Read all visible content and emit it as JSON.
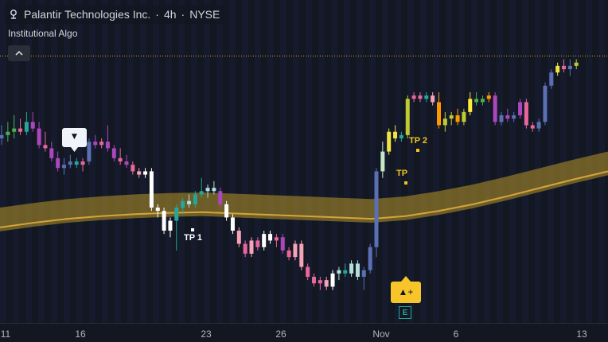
{
  "header": {
    "symbol": "Palantir Technologies Inc.",
    "separator": "·",
    "interval": "4h",
    "exchange": "NYSE",
    "indicator_name": "Institutional Algo"
  },
  "x_axis_labels": [
    "11",
    "16",
    "23",
    "26",
    "Nov",
    "6",
    "13"
  ],
  "annotations": {
    "tp1": "TP 1",
    "tp_partial": "TP",
    "tp2": "TP 2",
    "buy_signal": "▲+",
    "sell_signal": "▼",
    "earnings": "E"
  },
  "colors": {
    "background": "#131722",
    "stripe_dark": "#161c2e",
    "ma_band": "#b8952a",
    "ma_line": "#d4a53a",
    "dotted_line": "#c9a227",
    "buy_badge": "#f7c52a",
    "earnings": "#26a69a"
  },
  "chart_data": {
    "type": "candlestick",
    "symbol": "PLTR",
    "interval": "4h",
    "x": [
      "11",
      "16",
      "23",
      "26",
      "Nov",
      "6",
      "13"
    ],
    "candles": [
      {
        "o": 15.4,
        "h": 15.6,
        "l": 15.3,
        "c": 15.45,
        "color": "#5b6fb5"
      },
      {
        "o": 15.45,
        "h": 15.65,
        "l": 15.35,
        "c": 15.5,
        "color": "#4caf50"
      },
      {
        "o": 15.5,
        "h": 15.75,
        "l": 15.4,
        "c": 15.55,
        "color": "#4caf50"
      },
      {
        "o": 15.55,
        "h": 15.7,
        "l": 15.45,
        "c": 15.5,
        "color": "#e8669c"
      },
      {
        "o": 15.5,
        "h": 15.8,
        "l": 15.45,
        "c": 15.65,
        "color": "#26a69a"
      },
      {
        "o": 15.65,
        "h": 15.8,
        "l": 15.5,
        "c": 15.55,
        "color": "#ab47bc"
      },
      {
        "o": 15.55,
        "h": 15.65,
        "l": 15.25,
        "c": 15.3,
        "color": "#ab47bc"
      },
      {
        "o": 15.3,
        "h": 15.5,
        "l": 15.2,
        "c": 15.25,
        "color": "#e8669c"
      },
      {
        "o": 15.25,
        "h": 15.35,
        "l": 15.05,
        "c": 15.1,
        "color": "#ab47bc"
      },
      {
        "o": 15.1,
        "h": 15.2,
        "l": 14.9,
        "c": 14.95,
        "color": "#ab47bc"
      },
      {
        "o": 14.95,
        "h": 15.1,
        "l": 14.85,
        "c": 15.0,
        "color": "#5b6fb5"
      },
      {
        "o": 15.0,
        "h": 15.15,
        "l": 14.95,
        "c": 15.05,
        "color": "#5b6fb5"
      },
      {
        "o": 15.05,
        "h": 15.1,
        "l": 14.95,
        "c": 15.0,
        "color": "#26a69a"
      },
      {
        "o": 15.0,
        "h": 15.1,
        "l": 14.9,
        "c": 15.05,
        "color": "#e8669c"
      },
      {
        "o": 15.05,
        "h": 15.4,
        "l": 15.0,
        "c": 15.35,
        "color": "#5b6fb5"
      },
      {
        "o": 15.35,
        "h": 15.45,
        "l": 15.25,
        "c": 15.3,
        "color": "#ab47bc"
      },
      {
        "o": 15.3,
        "h": 15.4,
        "l": 15.25,
        "c": 15.35,
        "color": "#e8669c"
      },
      {
        "o": 15.35,
        "h": 15.6,
        "l": 15.2,
        "c": 15.25,
        "color": "#ab47bc"
      },
      {
        "o": 15.25,
        "h": 15.3,
        "l": 15.05,
        "c": 15.1,
        "color": "#ab47bc"
      },
      {
        "o": 15.1,
        "h": 15.25,
        "l": 15.0,
        "c": 15.05,
        "color": "#e8669c"
      },
      {
        "o": 15.05,
        "h": 15.15,
        "l": 14.95,
        "c": 15.0,
        "color": "#ab47bc"
      },
      {
        "o": 15.0,
        "h": 15.05,
        "l": 14.85,
        "c": 14.9,
        "color": "#e8669c"
      },
      {
        "o": 14.9,
        "h": 14.95,
        "l": 14.8,
        "c": 14.85,
        "color": "#f5a3b8"
      },
      {
        "o": 14.85,
        "h": 14.95,
        "l": 14.8,
        "c": 14.9,
        "color": "#ffffff"
      },
      {
        "o": 14.9,
        "h": 14.95,
        "l": 14.3,
        "c": 14.35,
        "color": "#ffffff"
      },
      {
        "o": 14.35,
        "h": 14.4,
        "l": 14.2,
        "c": 14.3,
        "color": "#ffffff"
      },
      {
        "o": 14.3,
        "h": 14.35,
        "l": 13.95,
        "c": 14.0,
        "color": "#ffffff"
      },
      {
        "o": 14.0,
        "h": 14.2,
        "l": 13.9,
        "c": 14.15,
        "color": "#ffffff"
      },
      {
        "o": 14.15,
        "h": 14.4,
        "l": 13.7,
        "c": 14.35,
        "color": "#26a69a"
      },
      {
        "o": 14.35,
        "h": 14.5,
        "l": 14.25,
        "c": 14.45,
        "color": "#26a69a"
      },
      {
        "o": 14.45,
        "h": 14.55,
        "l": 14.35,
        "c": 14.4,
        "color": "#b2dfdb"
      },
      {
        "o": 14.4,
        "h": 14.6,
        "l": 14.35,
        "c": 14.55,
        "color": "#26a69a"
      },
      {
        "o": 14.55,
        "h": 14.8,
        "l": 14.5,
        "c": 14.6,
        "color": "#26a69a"
      },
      {
        "o": 14.6,
        "h": 14.7,
        "l": 14.5,
        "c": 14.65,
        "color": "#b2dfdb"
      },
      {
        "o": 14.65,
        "h": 14.75,
        "l": 14.55,
        "c": 14.6,
        "color": "#b2dfdb"
      },
      {
        "o": 14.6,
        "h": 14.65,
        "l": 14.35,
        "c": 14.4,
        "color": "#ab47bc"
      },
      {
        "o": 14.4,
        "h": 14.45,
        "l": 14.15,
        "c": 14.2,
        "color": "#ffffff"
      },
      {
        "o": 14.2,
        "h": 14.25,
        "l": 13.95,
        "c": 14.0,
        "color": "#ffffff"
      },
      {
        "o": 14.0,
        "h": 14.05,
        "l": 13.75,
        "c": 13.8,
        "color": "#f5a3b8"
      },
      {
        "o": 13.8,
        "h": 13.85,
        "l": 13.6,
        "c": 13.65,
        "color": "#e8669c"
      },
      {
        "o": 13.65,
        "h": 13.9,
        "l": 13.6,
        "c": 13.85,
        "color": "#f5a3b8"
      },
      {
        "o": 13.85,
        "h": 13.9,
        "l": 13.7,
        "c": 13.75,
        "color": "#e8669c"
      },
      {
        "o": 13.75,
        "h": 14.0,
        "l": 13.7,
        "c": 13.95,
        "color": "#ffffff"
      },
      {
        "o": 13.95,
        "h": 14.0,
        "l": 13.8,
        "c": 13.85,
        "color": "#ffffff"
      },
      {
        "o": 13.85,
        "h": 13.95,
        "l": 13.75,
        "c": 13.9,
        "color": "#e8669c"
      },
      {
        "o": 13.9,
        "h": 13.95,
        "l": 13.65,
        "c": 13.7,
        "color": "#ab47bc"
      },
      {
        "o": 13.7,
        "h": 13.75,
        "l": 13.55,
        "c": 13.6,
        "color": "#e8669c"
      },
      {
        "o": 13.6,
        "h": 13.85,
        "l": 13.55,
        "c": 13.8,
        "color": "#f5a3b8"
      },
      {
        "o": 13.8,
        "h": 13.85,
        "l": 13.4,
        "c": 13.45,
        "color": "#f5a3b8"
      },
      {
        "o": 13.45,
        "h": 13.5,
        "l": 13.25,
        "c": 13.3,
        "color": "#e8669c"
      },
      {
        "o": 13.3,
        "h": 13.35,
        "l": 13.15,
        "c": 13.2,
        "color": "#e8669c"
      },
      {
        "o": 13.2,
        "h": 13.3,
        "l": 13.1,
        "c": 13.25,
        "color": "#e8669c"
      },
      {
        "o": 13.25,
        "h": 13.3,
        "l": 13.1,
        "c": 13.15,
        "color": "#f5a3b8"
      },
      {
        "o": 13.15,
        "h": 13.4,
        "l": 13.1,
        "c": 13.35,
        "color": "#ffffff"
      },
      {
        "o": 13.35,
        "h": 13.45,
        "l": 13.25,
        "c": 13.4,
        "color": "#b2dfdb"
      },
      {
        "o": 13.4,
        "h": 13.5,
        "l": 13.3,
        "c": 13.35,
        "color": "#26a69a"
      },
      {
        "o": 13.35,
        "h": 13.55,
        "l": 13.3,
        "c": 13.5,
        "color": "#b2dfdb"
      },
      {
        "o": 13.5,
        "h": 13.55,
        "l": 13.25,
        "c": 13.3,
        "color": "#b2dfdb"
      },
      {
        "o": 13.3,
        "h": 13.45,
        "l": 13.1,
        "c": 13.4,
        "color": "#5b6fb5"
      },
      {
        "o": 13.4,
        "h": 13.8,
        "l": 13.35,
        "c": 13.75,
        "color": "#5b6fb5"
      },
      {
        "o": 13.75,
        "h": 14.95,
        "l": 13.6,
        "c": 14.9,
        "color": "#5b6fb5"
      },
      {
        "o": 14.9,
        "h": 15.35,
        "l": 14.8,
        "c": 15.2,
        "color": "#c8e6c9"
      },
      {
        "o": 15.2,
        "h": 15.55,
        "l": 15.15,
        "c": 15.5,
        "color": "#f0e442"
      },
      {
        "o": 15.5,
        "h": 15.6,
        "l": 15.35,
        "c": 15.4,
        "color": "#f0e442"
      },
      {
        "o": 15.4,
        "h": 15.5,
        "l": 15.35,
        "c": 15.45,
        "color": "#26a69a"
      },
      {
        "o": 15.45,
        "h": 16.05,
        "l": 15.4,
        "c": 16.0,
        "color": "#c0ca33"
      },
      {
        "o": 16.0,
        "h": 16.1,
        "l": 15.95,
        "c": 16.05,
        "color": "#e8669c"
      },
      {
        "o": 16.05,
        "h": 16.1,
        "l": 15.95,
        "c": 16.0,
        "color": "#e8669c"
      },
      {
        "o": 16.0,
        "h": 16.1,
        "l": 15.95,
        "c": 16.05,
        "color": "#26a69a"
      },
      {
        "o": 16.05,
        "h": 16.1,
        "l": 15.9,
        "c": 15.95,
        "color": "#f5a3b8"
      },
      {
        "o": 15.95,
        "h": 16.1,
        "l": 15.55,
        "c": 15.6,
        "color": "#ff9800"
      },
      {
        "o": 15.6,
        "h": 15.8,
        "l": 15.5,
        "c": 15.7,
        "color": "#c0ca33"
      },
      {
        "o": 15.7,
        "h": 15.8,
        "l": 15.6,
        "c": 15.75,
        "color": "#c0ca33"
      },
      {
        "o": 15.75,
        "h": 15.85,
        "l": 15.6,
        "c": 15.65,
        "color": "#ff9800"
      },
      {
        "o": 15.65,
        "h": 15.85,
        "l": 15.6,
        "c": 15.8,
        "color": "#c0ca33"
      },
      {
        "o": 15.8,
        "h": 16.1,
        "l": 15.75,
        "c": 16.0,
        "color": "#ffeb3b"
      },
      {
        "o": 16.0,
        "h": 16.1,
        "l": 15.9,
        "c": 15.95,
        "color": "#4caf50"
      },
      {
        "o": 15.95,
        "h": 16.05,
        "l": 15.9,
        "c": 16.0,
        "color": "#4caf50"
      },
      {
        "o": 16.0,
        "h": 16.1,
        "l": 15.95,
        "c": 16.05,
        "color": "#ff9800"
      },
      {
        "o": 16.05,
        "h": 16.1,
        "l": 15.6,
        "c": 15.65,
        "color": "#ab47bc"
      },
      {
        "o": 15.65,
        "h": 15.8,
        "l": 15.6,
        "c": 15.75,
        "color": "#5b6fb5"
      },
      {
        "o": 15.75,
        "h": 15.85,
        "l": 15.65,
        "c": 15.7,
        "color": "#ab47bc"
      },
      {
        "o": 15.7,
        "h": 15.8,
        "l": 15.65,
        "c": 15.75,
        "color": "#5b6fb5"
      },
      {
        "o": 15.75,
        "h": 16.0,
        "l": 15.7,
        "c": 15.95,
        "color": "#ab47bc"
      },
      {
        "o": 15.95,
        "h": 16.0,
        "l": 15.55,
        "c": 15.6,
        "color": "#e8669c"
      },
      {
        "o": 15.6,
        "h": 15.65,
        "l": 15.5,
        "c": 15.55,
        "color": "#e8669c"
      },
      {
        "o": 15.55,
        "h": 15.7,
        "l": 15.5,
        "c": 15.65,
        "color": "#5b6fb5"
      },
      {
        "o": 15.65,
        "h": 16.25,
        "l": 15.6,
        "c": 16.2,
        "color": "#5b6fb5"
      },
      {
        "o": 16.2,
        "h": 16.45,
        "l": 16.15,
        "c": 16.4,
        "color": "#5b6fb5"
      },
      {
        "o": 16.4,
        "h": 16.55,
        "l": 16.35,
        "c": 16.5,
        "color": "#f0e442"
      },
      {
        "o": 16.5,
        "h": 16.6,
        "l": 16.4,
        "c": 16.45,
        "color": "#e8669c"
      },
      {
        "o": 16.45,
        "h": 16.6,
        "l": 16.35,
        "c": 16.5,
        "color": "#5b6fb5"
      },
      {
        "o": 16.5,
        "h": 16.6,
        "l": 16.45,
        "c": 16.55,
        "color": "#c0ca33"
      }
    ],
    "moving_average": [
      14.05,
      14.12,
      14.18,
      14.22,
      14.25,
      14.27,
      14.28,
      14.26,
      14.24,
      14.22,
      14.2,
      14.18,
      14.22,
      14.3,
      14.4,
      14.52,
      14.65,
      14.78,
      14.9
    ],
    "moving_average_band_width": 0.3,
    "dotted_level": 16.65,
    "signals": [
      {
        "type": "sell",
        "label": "▼",
        "bar": 9
      },
      {
        "type": "buy",
        "label": "▲+",
        "bar": 60
      }
    ],
    "take_profits": [
      {
        "label": "TP 1",
        "bar": 27
      },
      {
        "label": "TP",
        "bar": 61
      },
      {
        "label": "TP 2",
        "bar": 63
      }
    ],
    "y_range": [
      12.6,
      17.5
    ],
    "grid": false
  }
}
